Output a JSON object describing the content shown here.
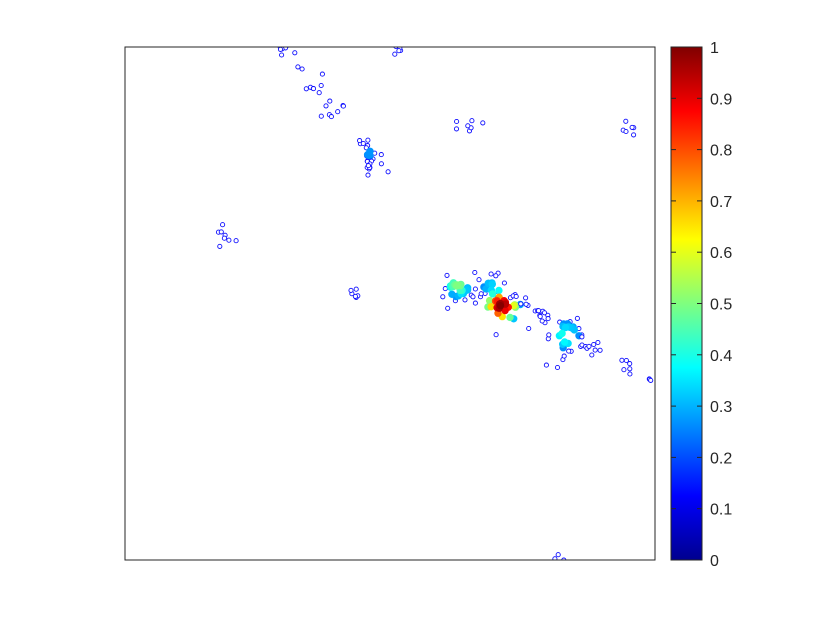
{
  "chart_data": {
    "type": "heatmap",
    "title": "",
    "xlabel": "",
    "ylabel": "",
    "xlim": [
      0,
      1
    ],
    "ylim": [
      0,
      1
    ],
    "grid": false,
    "axes_ticks": false,
    "colormap": "jet",
    "colorbar": {
      "location": "right",
      "range": [
        0,
        1
      ],
      "ticks": [
        0,
        0.1,
        0.2,
        0.3,
        0.4,
        0.5,
        0.6,
        0.7,
        0.8,
        0.9,
        1
      ],
      "tick_labels": [
        "0",
        "0.1",
        "0.2",
        "0.3",
        "0.4",
        "0.5",
        "0.6",
        "0.7",
        "0.8",
        "0.9",
        "1"
      ]
    },
    "clusters": [
      {
        "x": 0.292,
        "y": 0.995,
        "value": 0.22,
        "spread": 0.01,
        "count": 7
      },
      {
        "x": 0.517,
        "y": 0.995,
        "value": 0.22,
        "spread": 0.008,
        "count": 6
      },
      {
        "x": 0.335,
        "y": 0.965,
        "value": 0.1,
        "spread": 0.004,
        "count": 2
      },
      {
        "x": 0.373,
        "y": 0.95,
        "value": 0.1,
        "spread": 0.003,
        "count": 1
      },
      {
        "x": 0.358,
        "y": 0.917,
        "value": 0.12,
        "spread": 0.009,
        "count": 6
      },
      {
        "x": 0.402,
        "y": 0.876,
        "value": 0.13,
        "spread": 0.012,
        "count": 8
      },
      {
        "x": 0.443,
        "y": 0.819,
        "value": 0.1,
        "spread": 0.003,
        "count": 2
      },
      {
        "x": 0.461,
        "y": 0.793,
        "value": 0.28,
        "spread": 0.012,
        "count": 14
      },
      {
        "x": 0.46,
        "y": 0.769,
        "value": 0.25,
        "spread": 0.01,
        "count": 10
      },
      {
        "x": 0.491,
        "y": 0.754,
        "value": 0.1,
        "spread": 0.003,
        "count": 1
      },
      {
        "x": 0.645,
        "y": 0.846,
        "value": 0.12,
        "spread": 0.012,
        "count": 7
      },
      {
        "x": 0.952,
        "y": 0.84,
        "value": 0.13,
        "spread": 0.009,
        "count": 6
      },
      {
        "x": 0.188,
        "y": 0.629,
        "value": 0.13,
        "spread": 0.011,
        "count": 8
      },
      {
        "x": 0.432,
        "y": 0.525,
        "value": 0.11,
        "spread": 0.009,
        "count": 6
      },
      {
        "x": 0.628,
        "y": 0.535,
        "value": 0.5,
        "spread": 0.016,
        "count": 28
      },
      {
        "x": 0.692,
        "y": 0.531,
        "value": 0.35,
        "spread": 0.016,
        "count": 22
      },
      {
        "x": 0.711,
        "y": 0.495,
        "value": 1.0,
        "spread": 0.018,
        "count": 30
      },
      {
        "x": 0.745,
        "y": 0.508,
        "value": 0.14,
        "spread": 0.009,
        "count": 6
      },
      {
        "x": 0.785,
        "y": 0.47,
        "value": 0.24,
        "spread": 0.012,
        "count": 12
      },
      {
        "x": 0.833,
        "y": 0.437,
        "value": 0.42,
        "spread": 0.02,
        "count": 30
      },
      {
        "x": 0.882,
        "y": 0.415,
        "value": 0.15,
        "spread": 0.012,
        "count": 10
      },
      {
        "x": 0.94,
        "y": 0.372,
        "value": 0.12,
        "spread": 0.009,
        "count": 6
      },
      {
        "x": 0.996,
        "y": 0.353,
        "value": 0.12,
        "spread": 0.004,
        "count": 3
      },
      {
        "x": 0.823,
        "y": 0.0,
        "value": 0.2,
        "spread": 0.005,
        "count": 3
      }
    ]
  }
}
